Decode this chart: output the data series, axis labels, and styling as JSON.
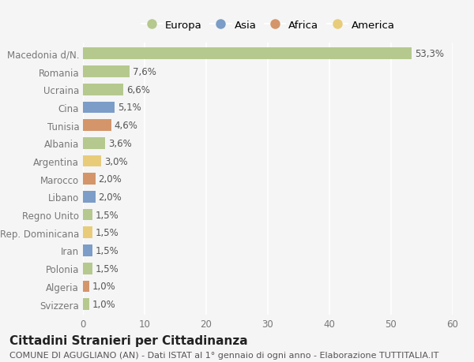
{
  "countries": [
    "Macedonia d/N.",
    "Romania",
    "Ucraina",
    "Cina",
    "Tunisia",
    "Albania",
    "Argentina",
    "Marocco",
    "Libano",
    "Regno Unito",
    "Rep. Dominicana",
    "Iran",
    "Polonia",
    "Algeria",
    "Svizzera"
  ],
  "values": [
    53.3,
    7.6,
    6.6,
    5.1,
    4.6,
    3.6,
    3.0,
    2.0,
    2.0,
    1.5,
    1.5,
    1.5,
    1.5,
    1.0,
    1.0
  ],
  "labels": [
    "53,3%",
    "7,6%",
    "6,6%",
    "5,1%",
    "4,6%",
    "3,6%",
    "3,0%",
    "2,0%",
    "2,0%",
    "1,5%",
    "1,5%",
    "1,5%",
    "1,5%",
    "1,0%",
    "1,0%"
  ],
  "continents": [
    "Europa",
    "Europa",
    "Europa",
    "Asia",
    "Africa",
    "Europa",
    "America",
    "Africa",
    "Asia",
    "Europa",
    "America",
    "Asia",
    "Europa",
    "Africa",
    "Europa"
  ],
  "continent_colors": {
    "Europa": "#b5c98e",
    "Asia": "#7b9dc7",
    "Africa": "#d4956a",
    "America": "#e8cc7a"
  },
  "legend_items": [
    "Europa",
    "Asia",
    "Africa",
    "America"
  ],
  "xlim": [
    0,
    60
  ],
  "xticks": [
    0,
    10,
    20,
    30,
    40,
    50,
    60
  ],
  "title": "Cittadini Stranieri per Cittadinanza",
  "subtitle": "COMUNE DI AGUGLIANO (AN) - Dati ISTAT al 1° gennaio di ogni anno - Elaborazione TUTTITALIA.IT",
  "background_color": "#f5f5f5",
  "grid_color": "#ffffff",
  "bar_height": 0.65,
  "title_fontsize": 11,
  "subtitle_fontsize": 8,
  "label_fontsize": 8.5,
  "tick_fontsize": 8.5,
  "legend_fontsize": 9.5
}
